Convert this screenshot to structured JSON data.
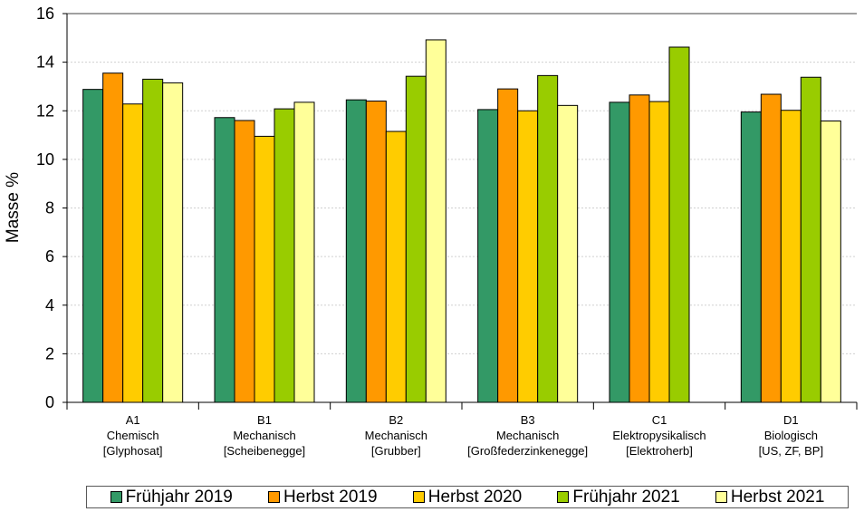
{
  "chart_data": {
    "type": "bar",
    "ylabel": "Masse %",
    "ylim": [
      0,
      16
    ],
    "yticks": [
      "0",
      "2",
      "4",
      "6",
      "8",
      "10",
      "12",
      "14",
      "16"
    ],
    "grid": true,
    "legend_position": "bottom",
    "categories": [
      {
        "line1": "A1",
        "line2": "Chemisch",
        "line3": "[Glyphosat]"
      },
      {
        "line1": "B1",
        "line2": "Mechanisch",
        "line3": "[Scheibenegge]"
      },
      {
        "line1": "B2",
        "line2": "Mechanisch",
        "line3": "[Grubber]"
      },
      {
        "line1": "B3",
        "line2": "Mechanisch",
        "line3": "[Großfederzinkenegge]"
      },
      {
        "line1": "C1",
        "line2": "Elektropysikalisch",
        "line3": "[Elektroherb]"
      },
      {
        "line1": "D1",
        "line2": "Biologisch",
        "line3": "[US, ZF, BP]"
      }
    ],
    "series": [
      {
        "name": "Frühjahr 2019",
        "color": "#339966",
        "values": [
          12.88,
          11.72,
          12.45,
          12.05,
          12.35,
          11.95
        ]
      },
      {
        "name": "Herbst 2019",
        "color": "#ff9900",
        "values": [
          13.55,
          11.6,
          12.4,
          12.9,
          12.65,
          12.68
        ]
      },
      {
        "name": "Herbst 2020",
        "color": "#ffcc00",
        "values": [
          12.28,
          10.95,
          11.15,
          12.0,
          12.38,
          12.02
        ]
      },
      {
        "name": "Frühjahr 2021",
        "color": "#99cc00",
        "values": [
          13.3,
          12.08,
          13.42,
          13.45,
          14.62,
          13.38
        ]
      },
      {
        "name": "Herbst 2021",
        "color": "#ffff99",
        "values": [
          13.15,
          12.35,
          14.92,
          12.22,
          null,
          11.58
        ]
      }
    ]
  }
}
